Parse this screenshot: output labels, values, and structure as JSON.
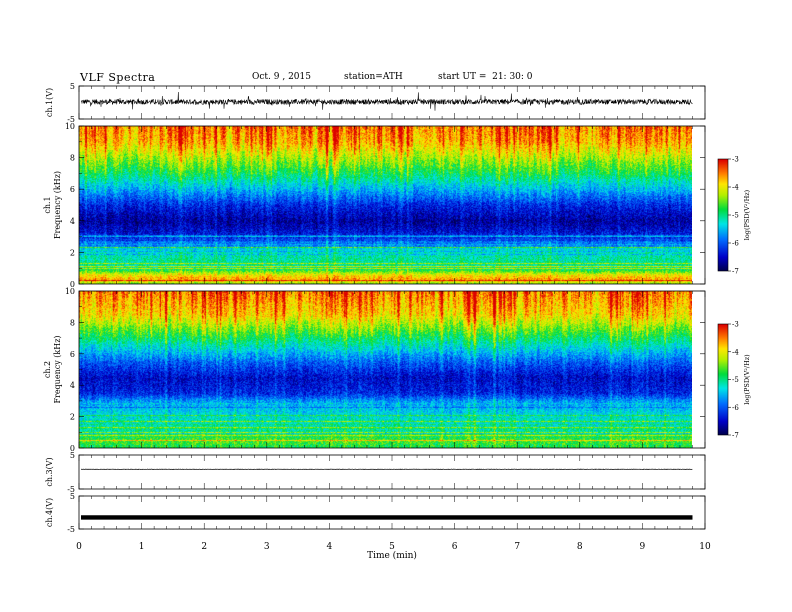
{
  "header": {
    "title": "VLF Spectra",
    "date": "Oct. 9 , 2015",
    "station": "station=ATH",
    "start_ut": "start UT =  21: 30: 0"
  },
  "chart_data": {
    "type": "heatmap",
    "xlabel": "Time (min)",
    "xlim": [
      0,
      10
    ],
    "xticks": [
      "0",
      "1",
      "2",
      "3",
      "4",
      "5",
      "6",
      "7",
      "8",
      "9",
      "10"
    ],
    "data_end_min": 9.8,
    "panels": [
      {
        "id": "ch1",
        "kind": "waveform",
        "ylabel": "ch.1(V)",
        "ylim": [
          -5,
          5
        ],
        "yticks": [
          "5",
          "-5"
        ],
        "baseline": 0.2,
        "amplitude": 0.8,
        "spike": 2.5
      },
      {
        "id": "ch1-spec",
        "kind": "spectrogram",
        "ylabel": "ch.1 Frequency (kHz)",
        "ylim": [
          0,
          10
        ],
        "yticks": [
          "0",
          "2",
          "4",
          "6",
          "8",
          "10"
        ],
        "colorbar": {
          "label": "log(PSD(V²/Hz)",
          "range": [
            -7,
            -3
          ],
          "ticks": [
            "-3",
            "-4",
            "-5",
            "-6",
            "-7"
          ]
        },
        "profile_khz_logpsd": [
          [
            0,
            -4.6
          ],
          [
            0.3,
            -3.6
          ],
          [
            0.6,
            -4.0
          ],
          [
            1,
            -5.0
          ],
          [
            2,
            -5.2
          ],
          [
            2.5,
            -5.6
          ],
          [
            3,
            -6.3
          ],
          [
            4,
            -6.7
          ],
          [
            5,
            -6.3
          ],
          [
            6,
            -5.6
          ],
          [
            7,
            -4.9
          ],
          [
            8,
            -4.3
          ],
          [
            9,
            -3.7
          ],
          [
            10,
            -3.5
          ]
        ]
      },
      {
        "id": "ch2-spec",
        "kind": "spectrogram",
        "ylabel": "ch.2 Frequency (kHz)",
        "ylim": [
          0,
          10
        ],
        "yticks": [
          "0",
          "2",
          "4",
          "6",
          "8",
          "10"
        ],
        "colorbar": {
          "label": "log(PSD(V²/Hz)",
          "range": [
            -7,
            -3
          ],
          "ticks": [
            "-3",
            "-4",
            "-5",
            "-6",
            "-7"
          ]
        },
        "profile_khz_logpsd": [
          [
            0,
            -4.9
          ],
          [
            0.5,
            -4.6
          ],
          [
            1,
            -5.1
          ],
          [
            2,
            -5.3
          ],
          [
            3,
            -5.7
          ],
          [
            3.5,
            -6.3
          ],
          [
            4.5,
            -6.5
          ],
          [
            5.5,
            -6.0
          ],
          [
            6.5,
            -5.3
          ],
          [
            7.5,
            -4.6
          ],
          [
            8.5,
            -3.9
          ],
          [
            10,
            -3.5
          ]
        ]
      },
      {
        "id": "ch3",
        "kind": "waveform",
        "ylabel": "ch.3(V)",
        "ylim": [
          -5,
          5
        ],
        "yticks": [
          "5",
          "-5"
        ],
        "baseline": 0.8,
        "amplitude": 0.05,
        "spike": 0
      },
      {
        "id": "ch4",
        "kind": "waveform",
        "ylabel": "ch.4(V)",
        "ylim": [
          -5,
          5
        ],
        "yticks": [
          "5",
          "-5"
        ],
        "baseline": -1.5,
        "amplitude": 0.0,
        "spike": 0,
        "thick": true
      }
    ]
  }
}
